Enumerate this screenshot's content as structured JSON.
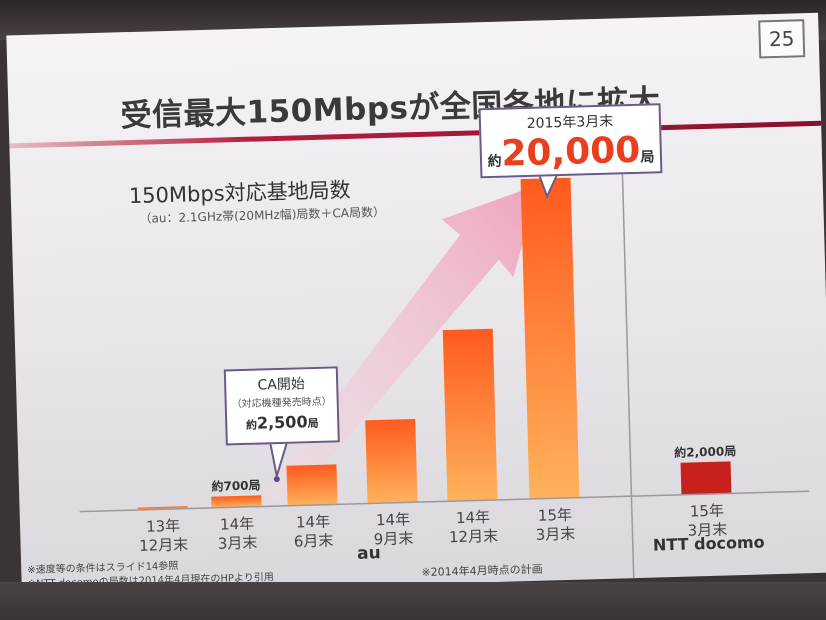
{
  "slide": {
    "page_number": "25",
    "title": "受信最大150Mbpsが全国各地に拡大",
    "subtitle": "150Mbps対応基地局数",
    "subtitle_note": "（au：2.1GHz帯(20MHz幅)局数＋CA局数）",
    "callout_top": {
      "date": "2015年3月末",
      "prefix": "約",
      "value": "20,000",
      "unit": "局"
    },
    "callout_ca": {
      "heading": "CA開始",
      "note": "（対応機種発売時点）",
      "prefix": "約",
      "value": "2,500",
      "unit": "局"
    },
    "footnotes": {
      "speed": "※速度等の条件はスライド14参照",
      "docomo": "※NTT docomoの局数は2014年4月現在のHPより引用",
      "plan": "※2014年4月時点の計画"
    }
  },
  "chart_data": {
    "type": "bar",
    "title": "150Mbps対応基地局数",
    "groups": [
      {
        "name": "au",
        "categories": [
          "13年\n12月末",
          "14年\n3月末",
          "14年\n6月末",
          "14年\n9月末",
          "14年\n12月末",
          "15年\n3月末"
        ],
        "values": [
          150,
          700,
          2500,
          5200,
          10700,
          20000
        ],
        "data_labels": [
          "",
          "約700局",
          "",
          "",
          "",
          ""
        ]
      },
      {
        "name": "NTT docomo",
        "categories": [
          "15年\n3月末"
        ],
        "values": [
          2000
        ],
        "data_labels": [
          "約2,000局"
        ]
      }
    ],
    "ylim": [
      0,
      20000
    ],
    "grid": false,
    "colors": {
      "au_bar_top": "#ff5a1e",
      "au_bar_bottom": "#ffb25a",
      "docomo_bar": "#c8201c",
      "trend_arrow": "#f0a8c0"
    }
  }
}
